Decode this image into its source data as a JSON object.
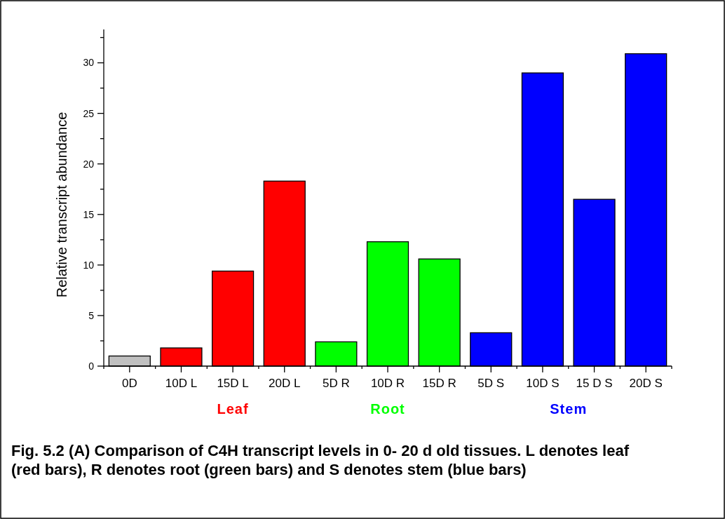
{
  "chart_data": {
    "type": "bar",
    "ylabel": "Relative transcript abundance",
    "categories": [
      "0D",
      "10D L",
      "15D L",
      "20D L",
      "5D R",
      "10D R",
      "15D R",
      "5D S",
      "10D S",
      "15 D S",
      "20D S"
    ],
    "values": [
      1.0,
      1.8,
      9.4,
      18.3,
      2.4,
      12.3,
      10.6,
      3.3,
      29.0,
      16.5,
      30.9
    ],
    "colors": [
      "#c0c0c0",
      "#ff0000",
      "#ff0000",
      "#ff0000",
      "#00ff00",
      "#00ff00",
      "#00ff00",
      "#0000ff",
      "#0000ff",
      "#0000ff",
      "#0000ff"
    ],
    "ylim": [
      0,
      33.3
    ],
    "yticks": [
      0,
      {
        "value": 2.5,
        "label": null
      },
      5,
      {
        "value": 7.5,
        "label": null
      },
      10,
      {
        "value": 12.5,
        "label": null
      },
      15,
      {
        "value": 17.5,
        "label": null
      },
      20,
      {
        "value": 22.5,
        "label": null
      },
      25,
      {
        "value": 27.5,
        "label": null
      },
      30,
      {
        "value": 32.5,
        "label": null
      }
    ],
    "annotations": [
      "Leaf",
      "Root",
      "Stem",
      "Fig. 5.2 (A) Comparison of C4H transcript levels in 0- 20 d old tissues. L denotes leaf (red bars), R denotes root (green bars) and S denotes stem (blue bars)"
    ],
    "grid": false
  }
}
